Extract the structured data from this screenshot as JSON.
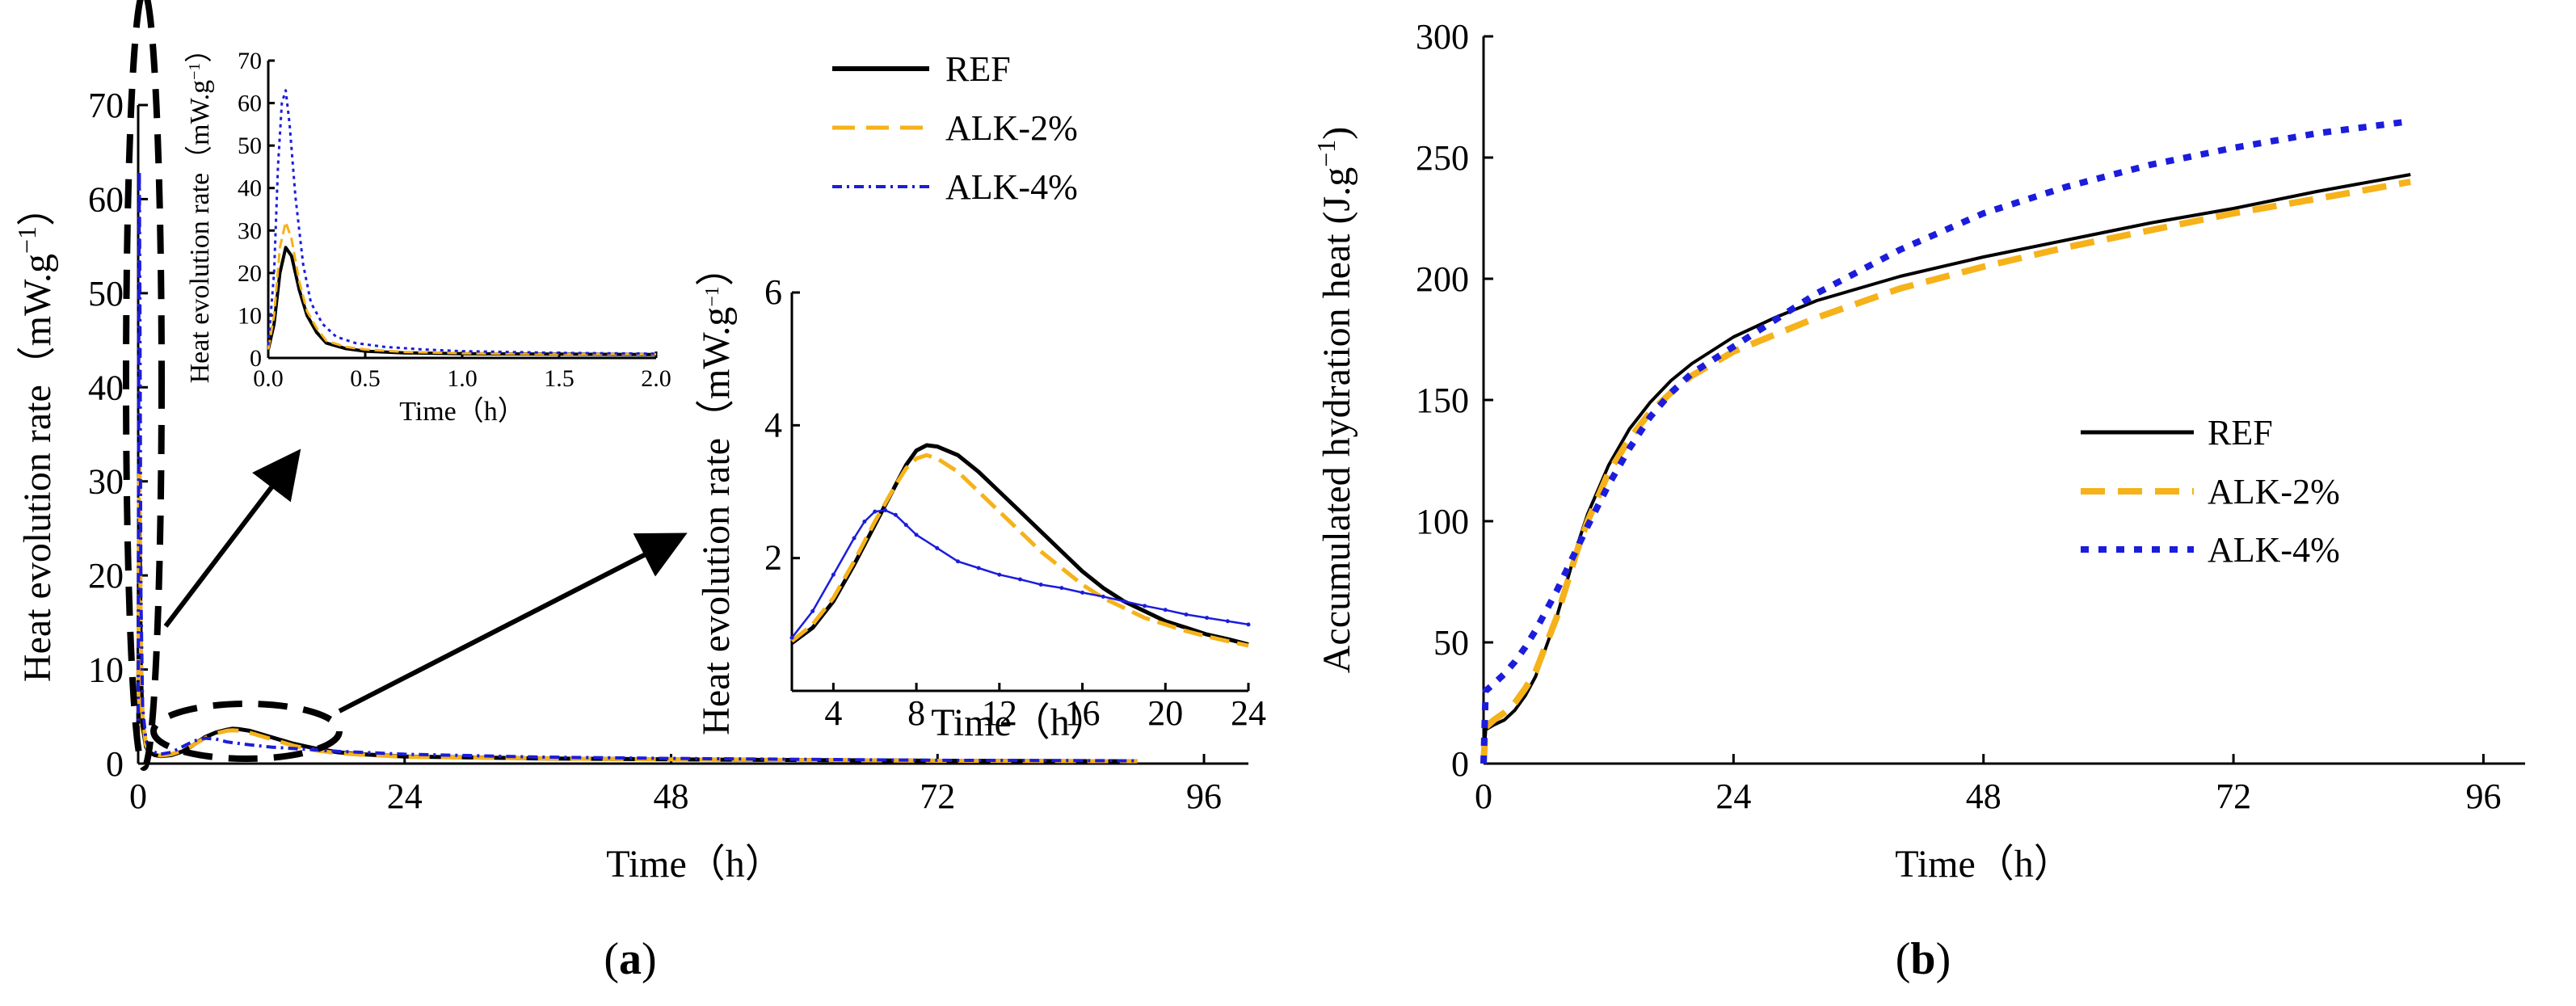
{
  "colors": {
    "REF": "#000000",
    "ALK2": "#f5b21a",
    "ALK4": "#1c1cdc",
    "axis": "#000000"
  },
  "series_names": [
    "REF",
    "ALK-2%",
    "ALK-4%"
  ],
  "panel_a": {
    "tag_open": "(",
    "tag": "a",
    "tag_close": ")"
  },
  "panel_b": {
    "tag_open": "(",
    "tag": "b",
    "tag_close": ")"
  },
  "chart_data": [
    {
      "id": "a_main",
      "type": "line",
      "title": "",
      "xlabel": "Time（h）",
      "ylabel": "Heat evolution rate（mW.g−1）",
      "ylabel_main": "Heat evolution rate（mW.g",
      "ylabel_sup": "−1",
      "ylabel_close": "）",
      "xlim": [
        0,
        100
      ],
      "ylim": [
        0,
        70
      ],
      "xticks": [
        0,
        24,
        48,
        72,
        96
      ],
      "yticks": [
        0,
        10,
        20,
        30,
        40,
        50,
        60,
        70
      ],
      "series": [
        {
          "name": "REF",
          "x": [
            0,
            0.08,
            0.15,
            0.25,
            0.4,
            0.7,
            1,
            1.5,
            2,
            3,
            4,
            5,
            6,
            7,
            8,
            8.5,
            9,
            10,
            12,
            14,
            16,
            18,
            20,
            24,
            36,
            48,
            72,
            90
          ],
          "y": [
            2,
            26,
            22,
            10,
            4,
            1.8,
            1.2,
            0.9,
            0.8,
            0.9,
            1.3,
            2.0,
            2.8,
            3.3,
            3.6,
            3.7,
            3.68,
            3.5,
            2.8,
            2.1,
            1.6,
            1.2,
            1.0,
            0.75,
            0.55,
            0.45,
            0.3,
            0.25
          ]
        },
        {
          "name": "ALK-2%",
          "x": [
            0,
            0.08,
            0.12,
            0.25,
            0.4,
            0.7,
            1,
            1.5,
            2,
            3,
            4,
            5,
            6,
            7,
            8,
            8.5,
            9,
            10,
            12,
            14,
            16,
            18,
            20,
            24,
            36,
            48,
            72,
            90
          ],
          "y": [
            2,
            30,
            32,
            12,
            5,
            2,
            1.3,
            1,
            0.85,
            1.0,
            1.4,
            2.0,
            2.7,
            3.2,
            3.5,
            3.55,
            3.5,
            3.3,
            2.6,
            1.9,
            1.4,
            1.1,
            0.95,
            0.72,
            0.55,
            0.45,
            0.3,
            0.25
          ]
        },
        {
          "name": "ALK-4%",
          "x": [
            0,
            0.05,
            0.1,
            0.15,
            0.25,
            0.4,
            0.7,
            1,
            1.5,
            2,
            3,
            4,
            5,
            6,
            7,
            8,
            10,
            12,
            14,
            16,
            18,
            20,
            24,
            36,
            48,
            72,
            90
          ],
          "y": [
            3,
            45,
            63,
            50,
            18,
            6,
            2.5,
            1.6,
            1.2,
            1.0,
            1.2,
            1.8,
            2.4,
            2.7,
            2.6,
            2.3,
            2.0,
            1.75,
            1.6,
            1.45,
            1.3,
            1.2,
            1.0,
            0.7,
            0.55,
            0.35,
            0.3
          ]
        }
      ]
    },
    {
      "id": "a_inset1",
      "type": "line",
      "title": "",
      "xlabel": "Time（h）",
      "ylabel": "Heat evolution rate（mW.g−1）",
      "ylabel_main": "Heat evolution rate（mW.g",
      "ylabel_sup": "−1",
      "ylabel_close": "）",
      "xlim": [
        0,
        2
      ],
      "ylim": [
        0,
        70
      ],
      "xticks": [
        "0.0",
        "0.5",
        "1.0",
        "1.5",
        "2.0"
      ],
      "yticks": [
        0,
        10,
        20,
        30,
        40,
        50,
        60,
        70
      ],
      "series": [
        {
          "name": "REF",
          "x": [
            0,
            0.03,
            0.06,
            0.09,
            0.12,
            0.16,
            0.2,
            0.25,
            0.3,
            0.4,
            0.5,
            0.7,
            1.0,
            1.5,
            2.0
          ],
          "y": [
            2,
            8,
            20,
            26,
            24,
            16,
            10,
            6,
            3.5,
            2.2,
            1.6,
            1.2,
            1.0,
            0.9,
            0.8
          ]
        },
        {
          "name": "ALK-2%",
          "x": [
            0,
            0.03,
            0.06,
            0.09,
            0.12,
            0.16,
            0.2,
            0.25,
            0.3,
            0.4,
            0.5,
            0.7,
            1.0,
            1.5,
            2.0
          ],
          "y": [
            2,
            10,
            26,
            32,
            28,
            18,
            11,
            7,
            4,
            2.6,
            2.0,
            1.4,
            1.1,
            0.9,
            0.85
          ]
        },
        {
          "name": "ALK-4%",
          "x": [
            0,
            0.03,
            0.05,
            0.07,
            0.09,
            0.11,
            0.14,
            0.18,
            0.22,
            0.28,
            0.35,
            0.45,
            0.6,
            0.8,
            1.0,
            1.5,
            2.0
          ],
          "y": [
            3,
            20,
            45,
            60,
            63,
            55,
            38,
            22,
            13,
            8,
            5,
            3.5,
            2.6,
            2.0,
            1.6,
            1.2,
            1.0
          ]
        }
      ]
    },
    {
      "id": "a_inset2",
      "type": "line",
      "title": "",
      "xlabel": "Time（h）",
      "ylabel": "Heat evolution rate（mW.g−1）",
      "ylabel_main": "Heat evolution rate（mW.g",
      "ylabel_sup": "−1",
      "ylabel_close": "）",
      "xlim": [
        2,
        24
      ],
      "ylim": [
        0,
        6
      ],
      "xticks": [
        4,
        8,
        12,
        16,
        20,
        24
      ],
      "yticks": [
        2,
        4,
        6
      ],
      "series": [
        {
          "name": "REF",
          "x": [
            2,
            3,
            4,
            5,
            6,
            7,
            7.5,
            8,
            8.5,
            9,
            10,
            11,
            12,
            13,
            14,
            15,
            16,
            17,
            18,
            19,
            20,
            21,
            22,
            23,
            24
          ],
          "y": [
            0.72,
            0.95,
            1.35,
            1.9,
            2.5,
            3.1,
            3.4,
            3.62,
            3.7,
            3.68,
            3.55,
            3.3,
            3.0,
            2.7,
            2.4,
            2.1,
            1.8,
            1.55,
            1.35,
            1.2,
            1.05,
            0.95,
            0.85,
            0.78,
            0.7
          ]
        },
        {
          "name": "ALK-2%",
          "x": [
            2,
            3,
            4,
            5,
            6,
            7,
            7.5,
            8,
            8.5,
            9,
            10,
            11,
            12,
            13,
            14,
            15,
            16,
            17,
            18,
            19,
            20,
            21,
            22,
            23,
            24
          ],
          "y": [
            0.75,
            1.0,
            1.4,
            1.95,
            2.55,
            3.1,
            3.35,
            3.5,
            3.55,
            3.5,
            3.3,
            3.0,
            2.7,
            2.4,
            2.1,
            1.85,
            1.6,
            1.4,
            1.25,
            1.1,
            1.0,
            0.9,
            0.82,
            0.75,
            0.68
          ]
        },
        {
          "name": "ALK-4%",
          "x": [
            2,
            3,
            4,
            5,
            5.5,
            6,
            6.5,
            7,
            7.5,
            8,
            9,
            10,
            11,
            12,
            13,
            14,
            15,
            16,
            17,
            18,
            19,
            20,
            21,
            22,
            23,
            24
          ],
          "y": [
            0.8,
            1.2,
            1.75,
            2.3,
            2.55,
            2.7,
            2.72,
            2.65,
            2.5,
            2.35,
            2.15,
            1.95,
            1.85,
            1.75,
            1.68,
            1.6,
            1.55,
            1.48,
            1.42,
            1.35,
            1.28,
            1.22,
            1.15,
            1.1,
            1.05,
            1.0
          ]
        }
      ]
    },
    {
      "id": "b_main",
      "type": "line",
      "title": "",
      "xlabel": "Time（h）",
      "ylabel": "Accumulated hydration heat (J.g−1)",
      "ylabel_main": "Accumulated hydration heat (J.g",
      "ylabel_sup": "−1",
      "ylabel_close": ")",
      "xlim": [
        0,
        100
      ],
      "ylim": [
        0,
        300
      ],
      "xticks": [
        0,
        24,
        48,
        72,
        96
      ],
      "yticks": [
        0,
        50,
        100,
        150,
        200,
        250,
        300
      ],
      "series": [
        {
          "name": "REF",
          "x": [
            0,
            0.2,
            1,
            2,
            3,
            4,
            5,
            6,
            7,
            8,
            9,
            10,
            12,
            14,
            16,
            18,
            20,
            24,
            28,
            32,
            36,
            40,
            48,
            56,
            64,
            72,
            80,
            89
          ],
          "y": [
            0,
            14,
            16,
            18,
            22,
            28,
            36,
            48,
            60,
            75,
            90,
            103,
            123,
            138,
            149,
            158,
            165,
            176,
            184,
            191,
            196,
            201,
            209,
            216,
            223,
            229,
            236,
            243
          ]
        },
        {
          "name": "ALK-2%",
          "x": [
            0,
            0.2,
            1,
            2,
            3,
            4,
            5,
            6,
            7,
            8,
            9,
            10,
            12,
            14,
            16,
            18,
            20,
            24,
            28,
            32,
            36,
            40,
            48,
            56,
            64,
            72,
            80,
            89
          ],
          "y": [
            0,
            15,
            18,
            21,
            25,
            31,
            38,
            49,
            60,
            74,
            88,
            100,
            120,
            134,
            145,
            153,
            160,
            170,
            177,
            184,
            190,
            196,
            205,
            213,
            220,
            227,
            233,
            240
          ]
        },
        {
          "name": "ALK-4%",
          "x": [
            0,
            0.2,
            1,
            2,
            3,
            4,
            5,
            6,
            7,
            8,
            9,
            10,
            12,
            14,
            16,
            18,
            20,
            24,
            28,
            32,
            36,
            40,
            48,
            56,
            64,
            72,
            80,
            89
          ],
          "y": [
            0,
            30,
            33,
            37,
            42,
            48,
            55,
            63,
            71,
            80,
            89,
            98,
            115,
            130,
            143,
            153,
            161,
            172,
            183,
            194,
            203,
            212,
            227,
            238,
            247,
            254,
            260,
            265
          ]
        }
      ]
    }
  ]
}
